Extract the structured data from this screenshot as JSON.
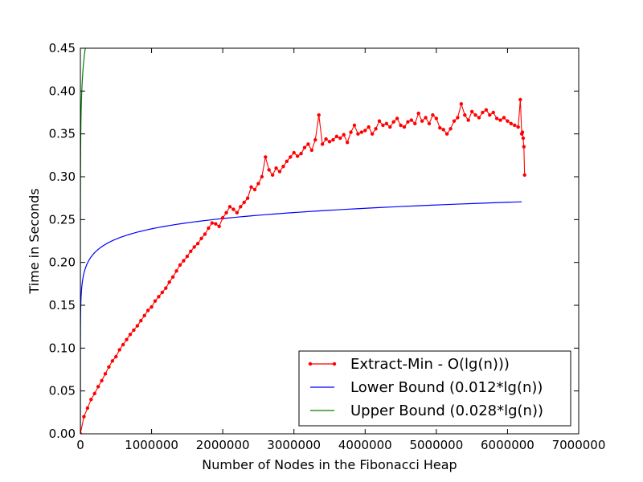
{
  "chart_data": {
    "type": "line",
    "title": "",
    "xlabel": "Number of Nodes in the Fibonacci Heap",
    "ylabel": "Time in Seconds",
    "xlim": [
      0,
      7000000
    ],
    "ylim": [
      0,
      0.45
    ],
    "xticks": [
      0,
      1000000,
      2000000,
      3000000,
      4000000,
      5000000,
      6000000,
      7000000
    ],
    "xtick_labels": [
      "0",
      "1000000",
      "2000000",
      "3000000",
      "4000000",
      "5000000",
      "6000000",
      "7000000"
    ],
    "yticks": [
      0,
      0.05,
      0.1,
      0.15,
      0.2,
      0.25,
      0.3,
      0.35,
      0.4,
      0.45
    ],
    "ytick_labels": [
      "0.00",
      "0.05",
      "0.10",
      "0.15",
      "0.20",
      "0.25",
      "0.30",
      "0.35",
      "0.40",
      "0.45"
    ],
    "grid": false,
    "legend_position": "bottom-right",
    "series": [
      {
        "name": "Extract-Min - O(lg(n)))",
        "color": "#ff0000",
        "marker": "dot",
        "x": [
          0,
          50000,
          100000,
          150000,
          200000,
          250000,
          300000,
          350000,
          400000,
          450000,
          500000,
          550000,
          600000,
          650000,
          700000,
          750000,
          800000,
          850000,
          900000,
          950000,
          1000000,
          1050000,
          1100000,
          1150000,
          1200000,
          1250000,
          1300000,
          1350000,
          1400000,
          1450000,
          1500000,
          1550000,
          1600000,
          1650000,
          1700000,
          1750000,
          1800000,
          1850000,
          1900000,
          1950000,
          2000000,
          2050000,
          2100000,
          2150000,
          2200000,
          2250000,
          2300000,
          2350000,
          2400000,
          2450000,
          2500000,
          2550000,
          2600000,
          2650000,
          2700000,
          2750000,
          2800000,
          2850000,
          2900000,
          2950000,
          3000000,
          3050000,
          3100000,
          3150000,
          3200000,
          3250000,
          3300000,
          3350000,
          3400000,
          3450000,
          3500000,
          3550000,
          3600000,
          3650000,
          3700000,
          3750000,
          3800000,
          3850000,
          3900000,
          3950000,
          4000000,
          4050000,
          4100000,
          4150000,
          4200000,
          4250000,
          4300000,
          4350000,
          4400000,
          4450000,
          4500000,
          4550000,
          4600000,
          4650000,
          4700000,
          4750000,
          4800000,
          4850000,
          4900000,
          4950000,
          5000000,
          5050000,
          5100000,
          5150000,
          5200000,
          5250000,
          5300000,
          5350000,
          5400000,
          5450000,
          5500000,
          5550000,
          5600000,
          5650000,
          5700000,
          5750000,
          5800000,
          5850000,
          5900000,
          5950000,
          6000000,
          6050000,
          6100000,
          6150000,
          6180000,
          6200000,
          6210000,
          6220000,
          6230000,
          6240000
        ],
        "y": [
          0.0,
          0.02,
          0.03,
          0.04,
          0.047,
          0.055,
          0.062,
          0.07,
          0.078,
          0.085,
          0.09,
          0.098,
          0.104,
          0.11,
          0.116,
          0.121,
          0.126,
          0.132,
          0.138,
          0.144,
          0.148,
          0.155,
          0.16,
          0.165,
          0.17,
          0.177,
          0.183,
          0.19,
          0.197,
          0.202,
          0.207,
          0.213,
          0.218,
          0.222,
          0.228,
          0.233,
          0.24,
          0.246,
          0.245,
          0.242,
          0.252,
          0.258,
          0.265,
          0.262,
          0.258,
          0.265,
          0.27,
          0.275,
          0.288,
          0.285,
          0.292,
          0.3,
          0.323,
          0.308,
          0.302,
          0.31,
          0.306,
          0.312,
          0.318,
          0.323,
          0.328,
          0.324,
          0.327,
          0.334,
          0.338,
          0.331,
          0.343,
          0.372,
          0.338,
          0.344,
          0.341,
          0.343,
          0.347,
          0.345,
          0.349,
          0.34,
          0.352,
          0.36,
          0.35,
          0.352,
          0.354,
          0.358,
          0.35,
          0.356,
          0.365,
          0.36,
          0.362,
          0.358,
          0.364,
          0.368,
          0.36,
          0.358,
          0.364,
          0.366,
          0.362,
          0.374,
          0.365,
          0.369,
          0.362,
          0.372,
          0.368,
          0.357,
          0.355,
          0.35,
          0.356,
          0.365,
          0.369,
          0.385,
          0.372,
          0.366,
          0.376,
          0.372,
          0.369,
          0.375,
          0.378,
          0.372,
          0.375,
          0.368,
          0.366,
          0.369,
          0.365,
          0.362,
          0.36,
          0.358,
          0.39,
          0.35,
          0.352,
          0.345,
          0.335,
          0.302
        ]
      },
      {
        "name": "Lower Bound (0.012*lg(n))",
        "color": "#0000ff",
        "coefficient": 0.012,
        "function": "lg(n)",
        "x_range": [
          1,
          6200000
        ]
      },
      {
        "name": "Upper Bound (0.028*lg(n))",
        "color": "#008000",
        "coefficient": 0.028,
        "function": "lg(n)",
        "x_range": [
          1,
          6200000
        ]
      }
    ]
  }
}
